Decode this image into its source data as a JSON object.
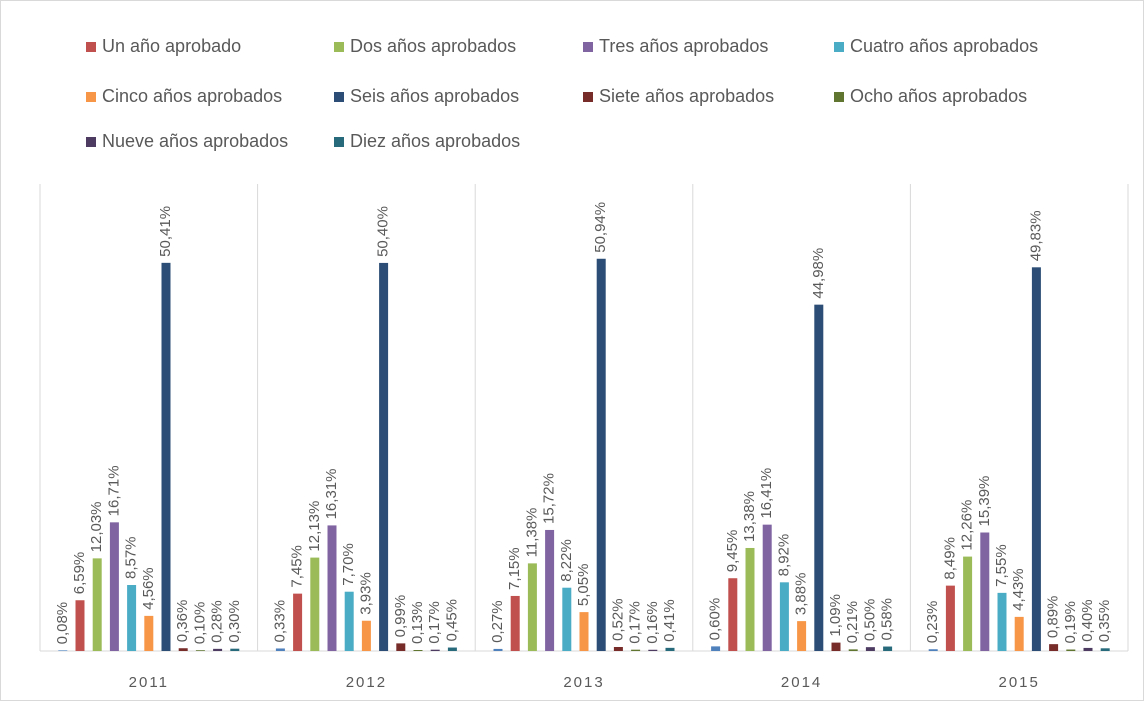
{
  "chart_data": {
    "type": "bar",
    "categories": [
      "2011",
      "2012",
      "2013",
      "2014",
      "2015"
    ],
    "ylim": [
      0,
      60
    ],
    "series": [
      {
        "color": "#4f81bd",
        "values": [
          0.08,
          0.33,
          0.27,
          0.6,
          0.23
        ],
        "value_labels": [
          "0,08%",
          "0,33%",
          "0,27%",
          "0,60%",
          "0,23%"
        ]
      },
      {
        "name": "Un año aprobado",
        "color": "#c0504d",
        "values": [
          6.59,
          7.45,
          7.15,
          9.45,
          8.49
        ],
        "value_labels": [
          "6,59%",
          "7,45%",
          "7,15%",
          "9,45%",
          "8,49%"
        ]
      },
      {
        "name": "Dos años aprobados",
        "color": "#9bbb59",
        "values": [
          12.03,
          12.13,
          11.38,
          13.38,
          12.26
        ],
        "value_labels": [
          "12,03%",
          "12,13%",
          "11,38%",
          "13,38%",
          "12,26%"
        ]
      },
      {
        "name": "Tres años aprobados",
        "color": "#8064a2",
        "values": [
          16.71,
          16.31,
          15.72,
          16.41,
          15.39
        ],
        "value_labels": [
          "16,71%",
          "16,31%",
          "15,72%",
          "16,41%",
          "15,39%"
        ]
      },
      {
        "name": "Cuatro años aprobados",
        "color": "#4bacc6",
        "values": [
          8.57,
          7.7,
          8.22,
          8.92,
          7.55
        ],
        "value_labels": [
          "8,57%",
          "7,70%",
          "8,22%",
          "8,92%",
          "7,55%"
        ]
      },
      {
        "name": "Cinco años aprobados",
        "color": "#f79646",
        "values": [
          4.56,
          3.93,
          5.05,
          3.88,
          4.43
        ],
        "value_labels": [
          "4,56%",
          "3,93%",
          "5,05%",
          "3,88%",
          "4,43%"
        ]
      },
      {
        "name": "Seis años aprobados",
        "color": "#2c4d75",
        "values": [
          50.41,
          50.4,
          50.94,
          44.98,
          49.83
        ],
        "value_labels": [
          "50,41%",
          "50,40%",
          "50,94%",
          "44,98%",
          "49,83%"
        ]
      },
      {
        "name": "Siete años aprobados",
        "color": "#772c2a",
        "values": [
          0.36,
          0.99,
          0.52,
          1.09,
          0.89
        ],
        "value_labels": [
          "0,36%",
          "0,99%",
          "0,52%",
          "1,09%",
          "0,89%"
        ]
      },
      {
        "name": "Ocho años aprobados",
        "color": "#5f7530",
        "values": [
          0.1,
          0.13,
          0.17,
          0.21,
          0.19
        ],
        "value_labels": [
          "0,10%",
          "0,13%",
          "0,17%",
          "0,21%",
          "0,19%"
        ]
      },
      {
        "name": "Nueve años aprobados",
        "color": "#4d3b62",
        "values": [
          0.28,
          0.17,
          0.16,
          0.5,
          0.4
        ],
        "value_labels": [
          "0,28%",
          "0,17%",
          "0,16%",
          "0,50%",
          "0,40%"
        ]
      },
      {
        "name": "Diez años aprobados",
        "color": "#276a7c",
        "values": [
          0.3,
          0.45,
          0.41,
          0.58,
          0.35
        ],
        "value_labels": [
          "0,30%",
          "0,45%",
          "0,41%",
          "0,58%",
          "0,35%"
        ]
      }
    ]
  }
}
